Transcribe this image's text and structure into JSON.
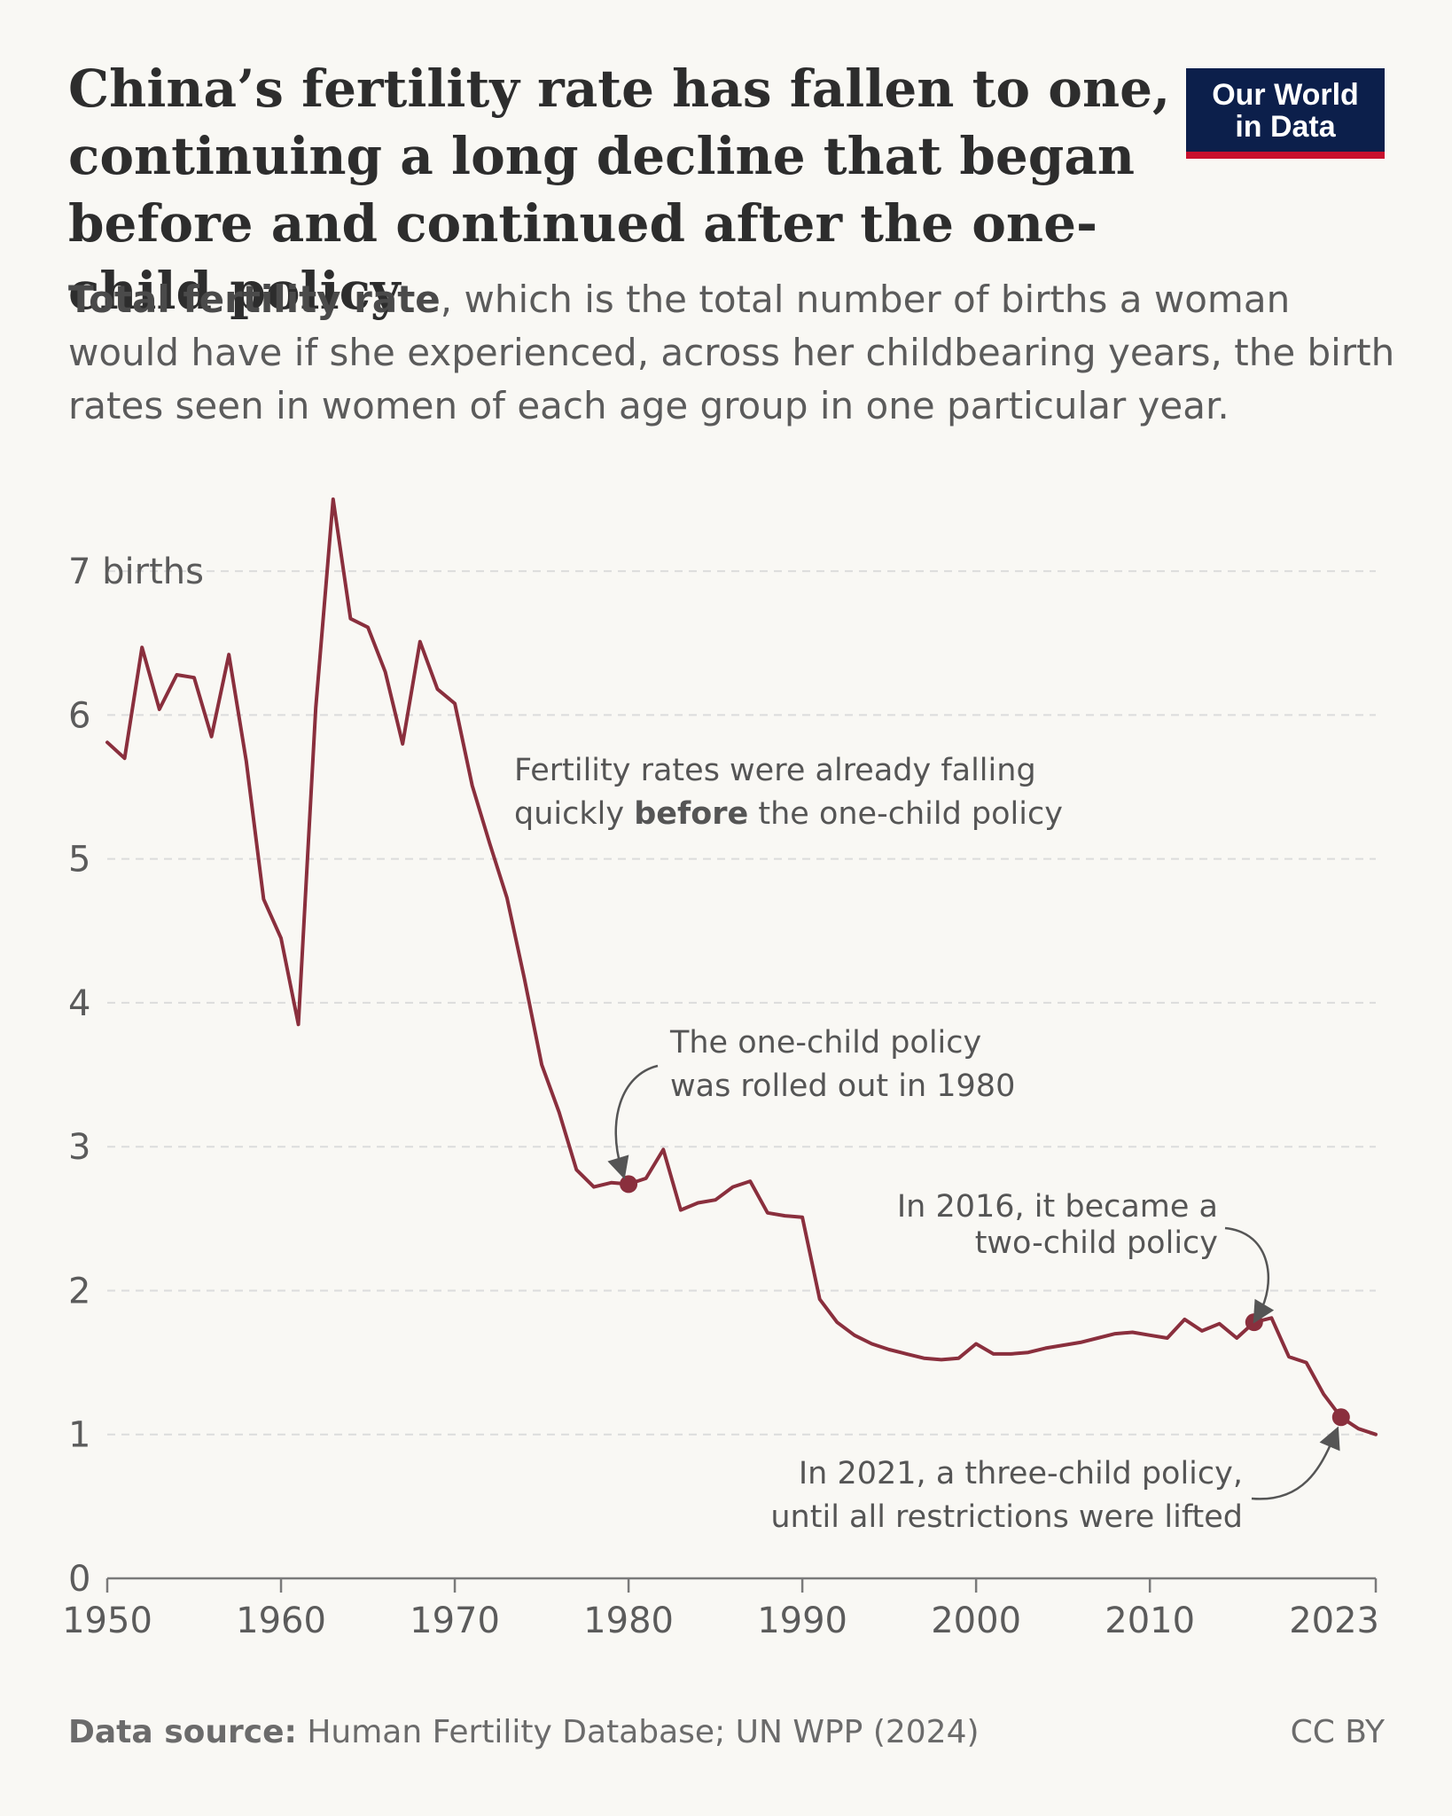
{
  "header": {
    "title": "China’s fertility rate has fallen to one, continuing a long decline that began before and continued after the one-child policy",
    "subtitle_bold": "Total fertility rate",
    "subtitle_rest": ", which is the total number of births a woman would have if she experienced, across her childbearing years, the birth rates seen in women of each age group in one particular year.",
    "logo_line1": "Our World",
    "logo_line2": "in Data"
  },
  "footer": {
    "source_label": "Data source:",
    "source_text": " Human Fertility Database; UN WPP (2024)",
    "license": "CC BY"
  },
  "colors": {
    "line": "#8a2f3d",
    "grid": "#dcdcdc",
    "axis": "#7a7a7a",
    "text": "#5b5b5b",
    "logo_bg": "#0c1f4b",
    "logo_accent": "#c8102e"
  },
  "chart_data": {
    "type": "line",
    "ylim": [
      0,
      7.5
    ],
    "xlim": [
      1950,
      2023
    ],
    "y_ticks": [
      0,
      1,
      2,
      3,
      4,
      5,
      6,
      7
    ],
    "y_tick_labels": [
      "0",
      "1",
      "2",
      "3",
      "4",
      "5",
      "6",
      "7 births"
    ],
    "x_ticks": [
      1950,
      1960,
      1970,
      1980,
      1990,
      2000,
      2010,
      2023
    ],
    "x_tick_labels": [
      "1950",
      "1960",
      "1970",
      "1980",
      "1990",
      "2000",
      "2010",
      "2023"
    ],
    "grid": true,
    "series": [
      {
        "x": [
          1950,
          1951,
          1952,
          1953,
          1954,
          1955,
          1956,
          1957,
          1958,
          1959,
          1960,
          1961,
          1962,
          1963,
          1964,
          1965,
          1966,
          1967,
          1968,
          1969,
          1970,
          1971,
          1972,
          1973,
          1974,
          1975,
          1976,
          1977,
          1978,
          1979,
          1980,
          1981,
          1982,
          1983,
          1984,
          1985,
          1986,
          1987,
          1988,
          1989,
          1990,
          1991,
          1992,
          1993,
          1994,
          1995,
          1996,
          1997,
          1998,
          1999,
          2000,
          2001,
          2002,
          2003,
          2004,
          2005,
          2006,
          2007,
          2008,
          2009,
          2010,
          2011,
          2012,
          2013,
          2014,
          2015,
          2016,
          2017,
          2018,
          2019,
          2020,
          2021,
          2022,
          2023
        ],
        "values": [
          5.81,
          5.7,
          6.47,
          6.04,
          6.28,
          6.26,
          5.85,
          6.42,
          5.68,
          4.72,
          4.45,
          3.85,
          6.05,
          7.5,
          6.67,
          6.61,
          6.3,
          5.8,
          6.51,
          6.18,
          6.08,
          5.51,
          5.11,
          4.73,
          4.17,
          3.57,
          3.24,
          2.84,
          2.72,
          2.75,
          2.74,
          2.78,
          2.98,
          2.56,
          2.61,
          2.63,
          2.72,
          2.76,
          2.54,
          2.52,
          2.51,
          1.94,
          1.78,
          1.69,
          1.63,
          1.59,
          1.56,
          1.53,
          1.52,
          1.53,
          1.63,
          1.56,
          1.56,
          1.57,
          1.6,
          1.62,
          1.64,
          1.67,
          1.7,
          1.71,
          1.69,
          1.67,
          1.8,
          1.72,
          1.77,
          1.67,
          1.78,
          1.81,
          1.54,
          1.5,
          1.28,
          1.12,
          1.04,
          1.0
        ]
      }
    ],
    "highlight_points": [
      {
        "x": 1980,
        "y": 2.74
      },
      {
        "x": 2016,
        "y": 1.78
      },
      {
        "x": 2021,
        "y": 1.12
      }
    ],
    "annotations": {
      "before_line1": "Fertility rates were already falling",
      "before_line2_pre": "quickly ",
      "before_line2_bold": "before",
      "before_line2_post": " the one-child policy",
      "one_child_line1": "The one-child policy",
      "one_child_line2": "was rolled out in 1980",
      "two_child_line1": "In 2016, it became a",
      "two_child_line2": "two-child policy",
      "three_child_line1": "In 2021, a three-child policy,",
      "three_child_line2": "until all restrictions were lifted"
    }
  }
}
